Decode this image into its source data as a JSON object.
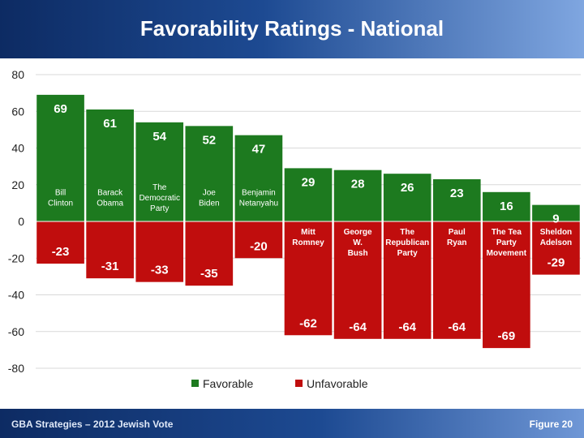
{
  "title": "Favorability Ratings - National",
  "footer": {
    "left": "GBA Strategies – 2012 Jewish Vote",
    "right": "Figure 20"
  },
  "colors": {
    "favorable": "#1d7a1f",
    "unfavorable": "#c00d0d",
    "header": "#0d2b63"
  },
  "chart_data": {
    "type": "bar",
    "categories": [
      "Bill Clinton",
      "Barack Obama",
      "The Democratic Party",
      "Joe Biden",
      "Benjamin Netanyahu",
      "Mitt Romney",
      "George W. Bush",
      "The Republican Party",
      "Paul Ryan",
      "The Tea Party Movement",
      "Sheldon Adelson"
    ],
    "category_lines": [
      [
        "Bill",
        "Clinton"
      ],
      [
        "Barack",
        "Obama"
      ],
      [
        "The",
        "Democratic",
        "Party"
      ],
      [
        "Joe",
        "Biden"
      ],
      [
        "Benjamin",
        "Netanyahu"
      ],
      [
        "Mitt",
        "Romney"
      ],
      [
        "George",
        "W.",
        "Bush"
      ],
      [
        "The",
        "Republican",
        "Party"
      ],
      [
        "Paul",
        "Ryan"
      ],
      [
        "The Tea",
        "Party",
        "Movement"
      ],
      [
        "Sheldon",
        "Adelson"
      ]
    ],
    "series": [
      {
        "name": "Favorable",
        "values": [
          69,
          61,
          54,
          52,
          47,
          29,
          28,
          26,
          23,
          16,
          9
        ]
      },
      {
        "name": "Unfavorable",
        "values": [
          -23,
          -31,
          -33,
          -35,
          -20,
          -62,
          -64,
          -64,
          -64,
          -69,
          -29
        ]
      }
    ],
    "ylim": [
      -80,
      80
    ],
    "yticks": [
      80,
      60,
      40,
      20,
      0,
      -20,
      -40,
      -60,
      -80
    ],
    "legend": "bottom",
    "grid": true
  }
}
